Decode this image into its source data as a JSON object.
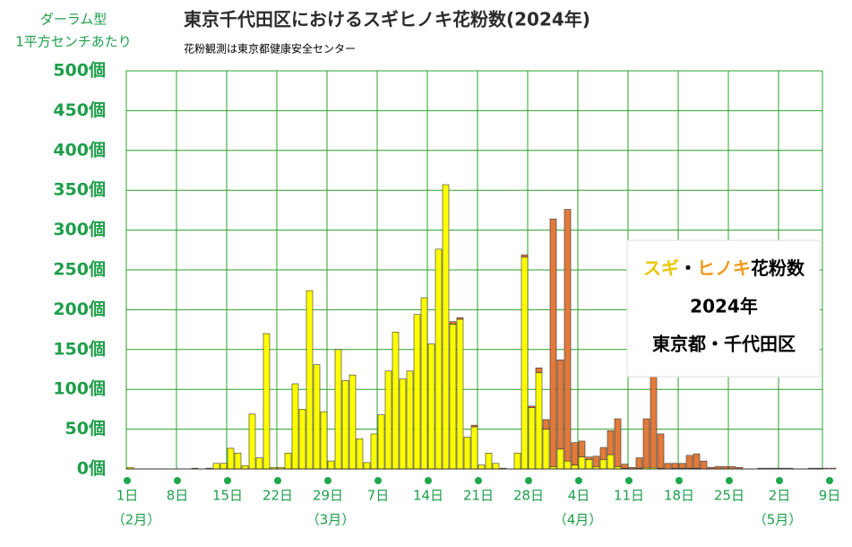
{
  "chart_data": {
    "type": "stacked_bar",
    "title": "東京千代田区におけるスギヒノキ花粉数(2024年)",
    "subtitle": "花粉観測は東京都健康安全センター",
    "y_axis_label": [
      "ダーラム型",
      "1平方センチあたり"
    ],
    "box_text": {
      "separator": "・",
      "suffix": "花粉数",
      "year": "2024年",
      "place": "東京都・千代田区"
    },
    "month_labels": [
      "（2月）",
      "（3月）",
      "（4月）",
      "（5月）"
    ],
    "categories": [
      "1日",
      null,
      null,
      null,
      null,
      null,
      null,
      "8日",
      null,
      null,
      null,
      null,
      null,
      null,
      "15日",
      null,
      null,
      null,
      null,
      null,
      null,
      "22日",
      null,
      null,
      null,
      null,
      null,
      null,
      "29日",
      null,
      null,
      null,
      null,
      null,
      null,
      "7日",
      null,
      null,
      null,
      null,
      null,
      null,
      "14日",
      null,
      null,
      null,
      null,
      null,
      null,
      "21日",
      null,
      null,
      null,
      null,
      null,
      null,
      "28日",
      null,
      null,
      null,
      null,
      null,
      null,
      "4日",
      null,
      null,
      null,
      null,
      null,
      null,
      "11日",
      null,
      null,
      null,
      null,
      null,
      null,
      "18日",
      null,
      null,
      null,
      null,
      null,
      null,
      "25日",
      null,
      null,
      null,
      null,
      null,
      null,
      "2日",
      null,
      null,
      null,
      null,
      null,
      null,
      "9日"
    ],
    "series": [
      {
        "name": "スギ",
        "color": "#ffff00",
        "values": [
          2,
          0,
          0,
          0,
          0,
          0,
          0,
          0,
          0,
          1,
          0,
          1,
          7,
          7,
          26,
          20,
          4,
          69,
          14,
          170,
          2,
          2,
          20,
          107,
          75,
          224,
          131,
          72,
          10,
          150,
          111,
          118,
          38,
          8,
          44,
          68,
          123,
          172,
          113,
          123,
          194,
          215,
          157,
          276,
          357,
          182,
          188,
          40,
          53,
          5,
          20,
          7,
          1,
          0,
          20,
          266,
          77,
          121,
          50,
          3,
          25,
          10,
          5,
          15,
          12,
          3,
          12,
          18,
          3,
          1,
          0,
          1,
          2,
          2,
          1,
          0,
          1,
          1,
          1,
          1,
          0,
          0,
          0,
          0,
          0,
          0,
          0,
          0,
          0,
          0,
          0,
          0,
          0,
          0,
          0,
          0,
          0,
          0,
          0
        ]
      },
      {
        "name": "ヒノキ",
        "color": "#e27a3a",
        "values": [
          0,
          0,
          0,
          0,
          0,
          0,
          0,
          0,
          0,
          0,
          0,
          0,
          0,
          0,
          0,
          0,
          0,
          0,
          0,
          0,
          0,
          0,
          0,
          0,
          0,
          0,
          0,
          0,
          0,
          0,
          0,
          0,
          0,
          0,
          0,
          0,
          0,
          0,
          0,
          0,
          0,
          0,
          0,
          0,
          0,
          3,
          2,
          0,
          2,
          0,
          0,
          0,
          0,
          0,
          0,
          3,
          2,
          6,
          12,
          311,
          112,
          316,
          28,
          20,
          3,
          13,
          15,
          30,
          60,
          5,
          2,
          13,
          61,
          123,
          43,
          7,
          6,
          6,
          16,
          18,
          10,
          2,
          3,
          3,
          3,
          2,
          0,
          0,
          1,
          1,
          1,
          1,
          1,
          0,
          0,
          1,
          1,
          1,
          1
        ]
      }
    ],
    "ylim": [
      0,
      500
    ],
    "yticks": [
      {
        "value": 0,
        "label": "0個"
      },
      {
        "value": 50,
        "label": "50個"
      },
      {
        "value": 100,
        "label": "100個"
      },
      {
        "value": 150,
        "label": "150個"
      },
      {
        "value": 200,
        "label": "200個"
      },
      {
        "value": 250,
        "label": "250個"
      },
      {
        "value": 300,
        "label": "300個"
      },
      {
        "value": 350,
        "label": "350個"
      },
      {
        "value": 400,
        "label": "400個"
      },
      {
        "value": 450,
        "label": "450個"
      },
      {
        "value": 500,
        "label": "500個"
      }
    ],
    "grid": true
  }
}
